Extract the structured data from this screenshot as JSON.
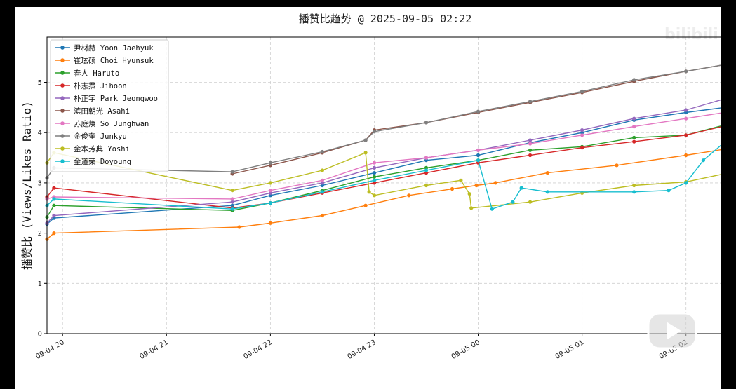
{
  "watermark": {
    "text": "",
    "logo": "bilibili"
  },
  "video_controls": {
    "play_icon": "play-icon"
  },
  "chart_data": {
    "type": "line",
    "title": "播赞比趋势 @ 2025-09-05 02:22",
    "xlabel": "",
    "ylabel": "播赞比 (Views/Likes Ratio)",
    "xlim": [
      "2025-09-04 19:51",
      "2025-09-05 02:22"
    ],
    "ylim": [
      0,
      5.9
    ],
    "x_ticks": [
      "09-04 20",
      "09-04 21",
      "09-04 22",
      "09-04 23",
      "09-05 00",
      "09-05 01",
      "09-05 02"
    ],
    "y_ticks": [
      0,
      1,
      2,
      3,
      4,
      5
    ],
    "grid": true,
    "legend_position": "top-left",
    "series": [
      {
        "name": "尹材赫 Yoon Jaehyuk",
        "color": "#1f77b4",
        "points": [
          [
            "2025-09-04 19:51",
            2.18
          ],
          [
            "2025-09-04 19:55",
            2.3
          ],
          [
            "2025-09-04 21:38",
            2.55
          ],
          [
            "2025-09-04 22:00",
            2.75
          ],
          [
            "2025-09-04 22:30",
            2.95
          ],
          [
            "2025-09-04 23:00",
            3.2
          ],
          [
            "2025-09-04 23:30",
            3.45
          ],
          [
            "2025-09-05 00:00",
            3.55
          ],
          [
            "2025-09-05 00:30",
            3.8
          ],
          [
            "2025-09-05 01:00",
            4.0
          ],
          [
            "2025-09-05 01:30",
            4.25
          ],
          [
            "2025-09-05 02:00",
            4.4
          ],
          [
            "2025-09-05 02:22",
            4.5
          ]
        ]
      },
      {
        "name": "崔玹硕 Choi Hyunsuk",
        "color": "#ff7f0e",
        "points": [
          [
            "2025-09-04 19:51",
            1.88
          ],
          [
            "2025-09-04 19:55",
            2.0
          ],
          [
            "2025-09-04 21:42",
            2.12
          ],
          [
            "2025-09-04 22:00",
            2.2
          ],
          [
            "2025-09-04 22:30",
            2.35
          ],
          [
            "2025-09-04 22:55",
            2.55
          ],
          [
            "2025-09-04 23:20",
            2.75
          ],
          [
            "2025-09-04 23:45",
            2.88
          ],
          [
            "2025-09-04 23:59",
            2.95
          ],
          [
            "2025-09-05 00:10",
            3.0
          ],
          [
            "2025-09-05 00:40",
            3.2
          ],
          [
            "2025-09-05 01:20",
            3.35
          ],
          [
            "2025-09-05 02:00",
            3.55
          ],
          [
            "2025-09-05 02:22",
            3.67
          ]
        ]
      },
      {
        "name": "春人 Haruto",
        "color": "#2ca02c",
        "points": [
          [
            "2025-09-04 19:51",
            2.32
          ],
          [
            "2025-09-04 19:55",
            2.55
          ],
          [
            "2025-09-04 21:38",
            2.45
          ],
          [
            "2025-09-04 22:00",
            2.6
          ],
          [
            "2025-09-04 22:30",
            2.85
          ],
          [
            "2025-09-04 23:00",
            3.12
          ],
          [
            "2025-09-04 23:30",
            3.3
          ],
          [
            "2025-09-05 00:00",
            3.45
          ],
          [
            "2025-09-05 00:30",
            3.65
          ],
          [
            "2025-09-05 01:00",
            3.72
          ],
          [
            "2025-09-05 01:30",
            3.9
          ],
          [
            "2025-09-05 02:00",
            3.95
          ],
          [
            "2025-09-05 02:22",
            4.15
          ]
        ]
      },
      {
        "name": "朴志焄 Jihoon",
        "color": "#d62728",
        "points": [
          [
            "2025-09-04 19:51",
            2.72
          ],
          [
            "2025-09-04 19:55",
            2.9
          ],
          [
            "2025-09-04 21:38",
            2.5
          ],
          [
            "2025-09-04 22:00",
            2.6
          ],
          [
            "2025-09-04 22:30",
            2.8
          ],
          [
            "2025-09-04 23:00",
            3.0
          ],
          [
            "2025-09-04 23:30",
            3.2
          ],
          [
            "2025-09-05 00:00",
            3.4
          ],
          [
            "2025-09-05 00:30",
            3.55
          ],
          [
            "2025-09-05 01:00",
            3.7
          ],
          [
            "2025-09-05 01:30",
            3.82
          ],
          [
            "2025-09-05 02:00",
            3.95
          ],
          [
            "2025-09-05 02:22",
            4.13
          ]
        ]
      },
      {
        "name": "朴正宇 Park Jeongwoo",
        "color": "#9467bd",
        "points": [
          [
            "2025-09-04 19:51",
            2.2
          ],
          [
            "2025-09-04 19:55",
            2.35
          ],
          [
            "2025-09-04 21:38",
            2.62
          ],
          [
            "2025-09-04 22:00",
            2.8
          ],
          [
            "2025-09-04 22:30",
            3.0
          ],
          [
            "2025-09-04 23:00",
            3.3
          ],
          [
            "2025-09-04 23:30",
            3.5
          ],
          [
            "2025-09-05 00:00",
            3.65
          ],
          [
            "2025-09-05 00:30",
            3.85
          ],
          [
            "2025-09-05 01:00",
            4.05
          ],
          [
            "2025-09-05 01:30",
            4.28
          ],
          [
            "2025-09-05 02:00",
            4.45
          ],
          [
            "2025-09-05 02:22",
            4.67
          ]
        ]
      },
      {
        "name": "滨田朝光 Asahi",
        "color": "#8c564b",
        "points": [
          [
            "2025-09-04 21:38",
            3.18
          ],
          [
            "2025-09-04 22:00",
            3.35
          ],
          [
            "2025-09-04 22:30",
            3.6
          ],
          [
            "2025-09-04 22:55",
            3.85
          ],
          [
            "2025-09-04 23:00",
            4.05
          ],
          [
            "2025-09-04 23:30",
            4.2
          ],
          [
            "2025-09-05 00:00",
            4.4
          ],
          [
            "2025-09-05 00:30",
            4.6
          ],
          [
            "2025-09-05 01:00",
            4.8
          ],
          [
            "2025-09-05 01:30",
            5.02
          ],
          [
            "2025-09-05 02:00",
            5.22
          ],
          [
            "2025-09-05 02:22",
            5.35
          ]
        ]
      },
      {
        "name": "苏庭焕 So Junghwan",
        "color": "#e377c2",
        "points": [
          [
            "2025-09-04 19:51",
            2.68
          ],
          [
            "2025-09-04 19:55",
            2.72
          ],
          [
            "2025-09-04 21:38",
            2.68
          ],
          [
            "2025-09-04 22:00",
            2.85
          ],
          [
            "2025-09-04 22:30",
            3.05
          ],
          [
            "2025-09-04 23:00",
            3.4
          ],
          [
            "2025-09-04 23:30",
            3.5
          ],
          [
            "2025-09-05 00:00",
            3.65
          ],
          [
            "2025-09-05 00:30",
            3.78
          ],
          [
            "2025-09-05 01:00",
            3.95
          ],
          [
            "2025-09-05 01:30",
            4.12
          ],
          [
            "2025-09-05 02:00",
            4.28
          ],
          [
            "2025-09-05 02:22",
            4.4
          ]
        ]
      },
      {
        "name": "金俊奎 Junkyu",
        "color": "#7f7f7f",
        "points": [
          [
            "2025-09-04 19:51",
            3.1
          ],
          [
            "2025-09-04 19:55",
            3.3
          ],
          [
            "2025-09-04 21:38",
            3.22
          ],
          [
            "2025-09-04 22:00",
            3.4
          ],
          [
            "2025-09-04 22:30",
            3.62
          ],
          [
            "2025-09-04 22:55",
            3.85
          ],
          [
            "2025-09-04 23:00",
            4.02
          ],
          [
            "2025-09-04 23:30",
            4.2
          ],
          [
            "2025-09-05 00:00",
            4.42
          ],
          [
            "2025-09-05 00:30",
            4.62
          ],
          [
            "2025-09-05 01:00",
            4.82
          ],
          [
            "2025-09-05 01:30",
            5.05
          ],
          [
            "2025-09-05 02:00",
            5.22
          ],
          [
            "2025-09-05 02:22",
            5.35
          ]
        ]
      },
      {
        "name": "金本芳典 Yoshi",
        "color": "#bcbd22",
        "points": [
          [
            "2025-09-04 19:51",
            3.4
          ],
          [
            "2025-09-04 19:55",
            3.6
          ],
          [
            "2025-09-04 21:38",
            2.85
          ],
          [
            "2025-09-04 22:00",
            3.0
          ],
          [
            "2025-09-04 22:30",
            3.25
          ],
          [
            "2025-09-04 22:55",
            3.6
          ],
          [
            "2025-09-04 22:57",
            2.82
          ],
          [
            "2025-09-04 23:00",
            2.75
          ],
          [
            "2025-09-04 23:30",
            2.95
          ],
          [
            "2025-09-04 23:50",
            3.05
          ],
          [
            "2025-09-04 23:55",
            2.78
          ],
          [
            "2025-09-04 23:56",
            2.5
          ],
          [
            "2025-09-05 00:30",
            2.62
          ],
          [
            "2025-09-05 01:00",
            2.8
          ],
          [
            "2025-09-05 01:30",
            2.95
          ],
          [
            "2025-09-05 02:00",
            3.02
          ],
          [
            "2025-09-05 02:22",
            3.18
          ]
        ]
      },
      {
        "name": "金道荣 Doyoung",
        "color": "#17becf",
        "points": [
          [
            "2025-09-04 19:51",
            2.55
          ],
          [
            "2025-09-04 19:55",
            2.68
          ],
          [
            "2025-09-04 21:38",
            2.48
          ],
          [
            "2025-09-04 22:00",
            2.6
          ],
          [
            "2025-09-04 22:30",
            2.82
          ],
          [
            "2025-09-04 23:00",
            3.05
          ],
          [
            "2025-09-04 23:30",
            3.25
          ],
          [
            "2025-09-05 00:00",
            3.45
          ],
          [
            "2025-09-05 00:08",
            2.48
          ],
          [
            "2025-09-05 00:20",
            2.62
          ],
          [
            "2025-09-05 00:25",
            2.9
          ],
          [
            "2025-09-05 00:40",
            2.82
          ],
          [
            "2025-09-05 01:30",
            2.82
          ],
          [
            "2025-09-05 01:50",
            2.85
          ],
          [
            "2025-09-05 02:00",
            3.0
          ],
          [
            "2025-09-05 02:10",
            3.45
          ],
          [
            "2025-09-05 02:22",
            3.8
          ]
        ]
      }
    ]
  }
}
